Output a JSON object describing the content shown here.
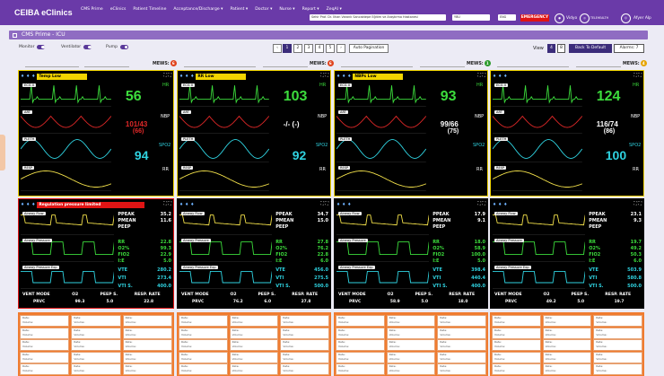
{
  "app": {
    "brand": "CEIBA eClinics",
    "nav": [
      "CMS Prime",
      "eClinics",
      "Patient Timeline",
      "Acceptance/Discharge ▾",
      "Patient ▾",
      "Doctor ▾",
      "Nurse ▾",
      "Report ▾",
      "ZeqAI ▾"
    ],
    "hospital_select": "Sehir Prof. Dr. İlhan Varank Sancaktepe Eğitim ve Araştırma Hastanesi",
    "unit_select": "YBÜ",
    "lang_select": "ENG",
    "emergency": "EMERGENCY",
    "vidyo": "Vidyo",
    "logo_text": "TELEHEALTH",
    "user": "Afyer Alp"
  },
  "page": {
    "title": "CMS Prime - ICU"
  },
  "controls": {
    "monitor": "Monitor",
    "ventilator": "Ventilator",
    "pump": "Pump",
    "pages": [
      "1",
      "2",
      "3",
      "4",
      "5"
    ],
    "active_page": "1",
    "auto_pagination": "Auto Pagination",
    "view": "View",
    "view_options": [
      "4",
      "8"
    ],
    "default_button": "Back To Default",
    "alarms": "Alarms: 7"
  },
  "colors": {
    "yellow": "#f2d500",
    "red": "#e02828",
    "green": "#3cdc3c",
    "cyan": "#2fd2e0",
    "white": "#ffffff",
    "purple": "#6a3aa8"
  },
  "beds": [
    {
      "mews_label": "MEWS:",
      "mews": "6",
      "mews_color": "#e0421c"
    },
    {
      "mews_label": "MEWS:",
      "mews": "6",
      "mews_color": "#e0421c"
    },
    {
      "mews_label": "MEWS:",
      "mews": "1",
      "mews_color": "#2a9a2a"
    },
    {
      "mews_label": "MEWS:",
      "mews": "4",
      "mews_color": "#e6a400"
    }
  ],
  "monitors": [
    {
      "alarm": "Temp Low",
      "alarm_color": "#f2d500",
      "hr": "56",
      "nbp": "101/43",
      "nbp_mean": "(66)",
      "nbp_color": "#e02828",
      "spo2": "94",
      "rr": "",
      "nbp_label": "NBP",
      "hr_label": "HR",
      "spo2_label": "SPO2",
      "rr_label": "RR"
    },
    {
      "alarm": "RR Low",
      "alarm_color": "#f2d500",
      "hr": "103",
      "nbp": "-/- (-)",
      "nbp_mean": "",
      "nbp_color": "#ffffff",
      "spo2": "92",
      "rr": "",
      "nbp_label": "NBP",
      "hr_label": "HR",
      "spo2_label": "SPO2",
      "rr_label": "RR"
    },
    {
      "alarm": "NBPs Low",
      "alarm_color": "#f2d500",
      "hr": "93",
      "nbp": "99/66",
      "nbp_mean": "(75)",
      "nbp_color": "#ffffff",
      "spo2": "",
      "rr": "",
      "nbp_label": "NBP",
      "hr_label": "HR",
      "spo2_label": "SPO2",
      "rr_label": "RR"
    },
    {
      "alarm": "",
      "alarm_color": "",
      "hr": "124",
      "nbp": "116/74",
      "nbp_mean": "(86)",
      "nbp_color": "#ffffff",
      "spo2": "100",
      "rr": "",
      "nbp_label": "NBP",
      "hr_label": "HR",
      "spo2_label": "SPO2",
      "rr_label": "RR"
    }
  ],
  "wave_labels": {
    "ecg": "ECG II",
    "art": "ART",
    "pleth": "PLETH",
    "resp": "RESP",
    "flow": "Airway Flow",
    "pressure": "Airway Pressure",
    "pexp": "Airway Pressure Exp"
  },
  "ventilators": [
    {
      "alarm": "Regulation pressure limited",
      "alarm_color": "#e01414",
      "ppeak": "35.2",
      "pmean": "11.6",
      "peep": "",
      "rr": "22.8",
      "o2": "99.3",
      "fio2": "22.9",
      "ie": "5.0",
      "vte": "280.2",
      "vti": "273.4",
      "vtis": "400.0",
      "mode": "PRVC",
      "o2_set": "99.3",
      "peep_set": "5.0",
      "rate": "22.8"
    },
    {
      "alarm": "",
      "alarm_color": "",
      "ppeak": "34.7",
      "pmean": "15.0",
      "peep": "",
      "rr": "27.8",
      "o2": "76.2",
      "fio2": "22.8",
      "ie": "6.0",
      "vte": "456.0",
      "vti": "275.5",
      "vtis": "500.0",
      "mode": "PRVC",
      "o2_set": "76.2",
      "peep_set": "6.0",
      "rate": "27.8"
    },
    {
      "alarm": "",
      "alarm_color": "",
      "ppeak": "17.9",
      "pmean": "9.1",
      "peep": "",
      "rr": "18.0",
      "o2": "58.9",
      "fio2": "100.0",
      "ie": "5.0",
      "vte": "398.4",
      "vti": "440.4",
      "vtis": "400.0",
      "mode": "PRVC",
      "o2_set": "58.9",
      "peep_set": "5.0",
      "rate": "18.0"
    },
    {
      "alarm": "",
      "alarm_color": "",
      "ppeak": "23.1",
      "pmean": "9.3",
      "peep": "",
      "rr": "19.7",
      "o2": "49.2",
      "fio2": "50.3",
      "ie": "6.0",
      "vte": "503.9",
      "vti": "580.8",
      "vtis": "500.0",
      "mode": "PRVC",
      "o2_set": "49.2",
      "peep_set": "5.0",
      "rate": "19.7"
    }
  ],
  "vent_labels": {
    "ppeak": "PPEAK",
    "pmean": "PMEAN",
    "peep": "PEEP",
    "rr": "RR",
    "o2": "O2%",
    "fio2": "FIO2",
    "ie": "I:E",
    "vte": "VTE",
    "vti": "VTI",
    "vtis": "VTI S.",
    "mode": "VENT MODE",
    "o2_set": "O2",
    "peep_set": "PEEP S.",
    "rate": "RESP. RATE"
  },
  "pump": {
    "rate_label": "Rate:",
    "volume_label": "Volume:"
  }
}
